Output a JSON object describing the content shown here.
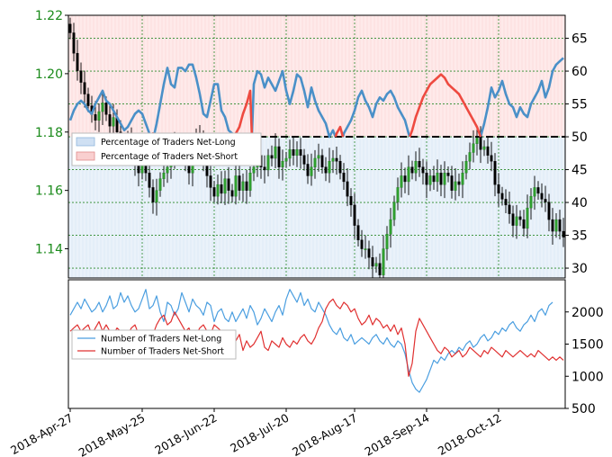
{
  "chart_data": [
    {
      "type": "line",
      "panel": "sentiment-price",
      "price_axis": {
        "ticks": [
          1.14,
          1.16,
          1.18,
          1.2,
          1.22
        ],
        "tick_labels": [
          "1.14",
          "1.16",
          "1.18",
          "1.20",
          "1.22"
        ],
        "range": [
          1.13,
          1.22
        ],
        "color": "#1a8a1a"
      },
      "pct_axis": {
        "ticks": [
          30,
          35,
          40,
          45,
          50,
          55,
          60,
          65
        ],
        "tick_labels": [
          "30",
          "35",
          "40",
          "45",
          "50",
          "55",
          "60",
          "65"
        ],
        "range": [
          28.5,
          68.5
        ]
      },
      "threshold": 50,
      "legend": [
        "Percentage of Traders Net-Long",
        "Percentage of Traders Net-Short"
      ],
      "legend_position": "upper-left",
      "grid": true,
      "price_closes": [
        1.214,
        1.207,
        1.201,
        1.197,
        1.193,
        1.189,
        1.186,
        1.184,
        1.187,
        1.19,
        1.186,
        1.182,
        1.185,
        1.18,
        1.176,
        1.172,
        1.177,
        1.174,
        1.169,
        1.166,
        1.17,
        1.166,
        1.161,
        1.156,
        1.16,
        1.164,
        1.166,
        1.168,
        1.172,
        1.176,
        1.173,
        1.175,
        1.17,
        1.166,
        1.172,
        1.179,
        1.176,
        1.17,
        1.165,
        1.161,
        1.158,
        1.162,
        1.159,
        1.164,
        1.16,
        1.158,
        1.165,
        1.16,
        1.163,
        1.16,
        1.166,
        1.168,
        1.172,
        1.168,
        1.167,
        1.172,
        1.171,
        1.175,
        1.168,
        1.17,
        1.171,
        1.174,
        1.172,
        1.174,
        1.172,
        1.169,
        1.165,
        1.168,
        1.171,
        1.172,
        1.168,
        1.166,
        1.17,
        1.171,
        1.17,
        1.166,
        1.163,
        1.158,
        1.155,
        1.148,
        1.143,
        1.14,
        1.14,
        1.137,
        1.134,
        1.135,
        1.131,
        1.14,
        1.145,
        1.15,
        1.156,
        1.161,
        1.165,
        1.163,
        1.168,
        1.166,
        1.17,
        1.168,
        1.166,
        1.162,
        1.165,
        1.163,
        1.166,
        1.162,
        1.166,
        1.165,
        1.16,
        1.163,
        1.162,
        1.166,
        1.17,
        1.173,
        1.176,
        1.178,
        1.174,
        1.175,
        1.172,
        1.17,
        1.162,
        1.159,
        1.157,
        1.155,
        1.152,
        1.148,
        1.151,
        1.15,
        1.147,
        1.154,
        1.158,
        1.161,
        1.159,
        1.157,
        1.156,
        1.15,
        1.146,
        1.15,
        1.146,
        1.144,
        1.14
      ],
      "series": [
        {
          "name": "Percentage of Traders Net-Long",
          "values": [
            52.5,
            54.0,
            55.0,
            55.5,
            55.0,
            54.0,
            53.5,
            55.0,
            56.0,
            57.0,
            55.5,
            55.0,
            54.0,
            53.0,
            52.0,
            51.0,
            51.5,
            52.5,
            53.5,
            54.0,
            53.5,
            52.0,
            50.5,
            49.5,
            52.0,
            55.0,
            58.0,
            60.5,
            58.0,
            57.5,
            60.5,
            60.5,
            60.0,
            61.0,
            61.0,
            59.0,
            56.5,
            53.5,
            53.0,
            55.5,
            58.0,
            58.0,
            54.0,
            53.0,
            51.0,
            50.5,
            49.5,
            48.5,
            46.5,
            45.0,
            43.0,
            58.0,
            60.0,
            59.5,
            57.5,
            59.0,
            58.0,
            57.0,
            58.5,
            60.0,
            57.0,
            55.0,
            57.0,
            59.5,
            59.0,
            57.0,
            54.5,
            57.5,
            55.5,
            54.0,
            53.0,
            52.0,
            50.0,
            51.0,
            49.5,
            48.5,
            50.5,
            51.5,
            52.5,
            54.0,
            56.0,
            57.0,
            55.5,
            54.5,
            53.0,
            55.0,
            56.0,
            55.5,
            56.5,
            57.0,
            56.0,
            54.5,
            53.5,
            52.5,
            50.5,
            49.0,
            47.0,
            45.5,
            44.0,
            43.0,
            42.0,
            41.5,
            41.0,
            40.5,
            41.0,
            42.0,
            42.5,
            43.0,
            43.5,
            44.5,
            45.5,
            46.5,
            47.5,
            48.5,
            50.0,
            52.0,
            54.5,
            57.5,
            56.0,
            57.0,
            58.5,
            56.5,
            55.0,
            54.5,
            53.0,
            54.5,
            53.5,
            53.0,
            55.0,
            56.0,
            57.0,
            58.5,
            56.0,
            57.5,
            60.0,
            61.0,
            61.5,
            62.0
          ]
        },
        {
          "name": "Percentage of Traders Net-Short",
          "values": [
            47.5,
            46.0,
            45.0,
            44.5,
            45.0,
            46.0,
            46.5,
            45.0,
            44.0,
            43.0,
            44.5,
            45.0,
            46.0,
            47.0,
            48.0,
            49.0,
            48.5,
            47.5,
            46.5,
            46.0,
            46.5,
            48.0,
            49.5,
            50.5,
            48.0,
            45.0,
            42.0,
            39.5,
            42.0,
            42.5,
            39.5,
            39.5,
            40.0,
            39.0,
            39.0,
            41.0,
            43.5,
            46.5,
            47.0,
            44.5,
            42.0,
            42.0,
            46.0,
            47.0,
            49.0,
            49.5,
            50.5,
            51.5,
            53.5,
            55.0,
            57.0,
            42.0,
            40.0,
            40.5,
            42.5,
            41.0,
            42.0,
            43.0,
            41.5,
            40.0,
            43.0,
            45.0,
            43.0,
            40.5,
            41.0,
            43.0,
            45.5,
            42.5,
            44.5,
            46.0,
            47.0,
            48.0,
            50.0,
            49.0,
            50.5,
            51.5,
            49.5,
            48.5,
            47.5,
            46.0,
            44.0,
            43.0,
            44.5,
            45.5,
            47.0,
            45.0,
            44.0,
            44.5,
            43.5,
            43.0,
            44.0,
            45.5,
            46.5,
            47.5,
            49.5,
            51.0,
            53.0,
            54.5,
            56.0,
            57.0,
            58.0,
            58.5,
            59.0,
            59.5,
            59.0,
            58.0,
            57.5,
            57.0,
            56.5,
            55.5,
            54.5,
            53.5,
            52.5,
            51.5,
            50.0,
            48.0,
            45.5,
            42.5,
            44.0,
            43.0,
            41.5,
            43.5,
            45.0,
            45.5,
            47.0,
            45.5,
            46.5,
            47.0,
            45.0,
            44.0,
            43.0,
            41.5,
            44.0,
            42.5,
            40.0,
            39.0,
            38.5,
            38.0
          ]
        }
      ]
    },
    {
      "type": "line",
      "panel": "trader-counts",
      "y_axis": {
        "ticks": [
          500,
          1000,
          1500,
          2000
        ],
        "tick_labels": [
          "500",
          "1000",
          "1500",
          "2000"
        ],
        "range": [
          500,
          2500
        ]
      },
      "legend": [
        "Number of Traders Net-Long",
        "Number of Traders Net-Short"
      ],
      "legend_position": "left",
      "x_tick_labels": [
        "2018-Apr-27",
        "2018-May-25",
        "2018-Jun-22",
        "2018-Jul-20",
        "2018-Aug-17",
        "2018-Sep-14",
        "2018-Oct-12"
      ],
      "series": [
        {
          "name": "Number of Traders Net-Long",
          "values": [
            1950,
            2050,
            2150,
            2050,
            2200,
            2100,
            2000,
            2050,
            2150,
            2000,
            2100,
            2250,
            2050,
            2100,
            2300,
            2150,
            2250,
            2100,
            2000,
            2050,
            2200,
            2350,
            2050,
            2100,
            2250,
            2000,
            1850,
            2150,
            2100,
            1950,
            2050,
            2300,
            2150,
            2000,
            2200,
            2100,
            2050,
            1950,
            2150,
            2100,
            1850,
            2000,
            2050,
            1900,
            1850,
            2000,
            1850,
            1950,
            2050,
            1900,
            2100,
            2000,
            1800,
            1900,
            2050,
            1950,
            1850,
            2000,
            2100,
            1950,
            2200,
            2350,
            2250,
            2150,
            2300,
            2100,
            2200,
            2050,
            2000,
            2150,
            2050,
            1950,
            1800,
            1700,
            1650,
            1750,
            1600,
            1550,
            1650,
            1500,
            1550,
            1600,
            1550,
            1500,
            1600,
            1650,
            1550,
            1500,
            1600,
            1500,
            1450,
            1550,
            1500,
            1350,
            1100,
            900,
            800,
            750,
            850,
            950,
            1100,
            1250,
            1200,
            1300,
            1250,
            1350,
            1400,
            1350,
            1450,
            1400,
            1500,
            1550,
            1450,
            1500,
            1600,
            1650,
            1550,
            1600,
            1700,
            1650,
            1750,
            1700,
            1800,
            1850,
            1750,
            1700,
            1800,
            1850,
            1950,
            1850,
            2000,
            2050,
            1950,
            2100,
            2150
          ]
        },
        {
          "name": "Number of Traders Net-Short",
          "values": [
            1700,
            1750,
            1800,
            1700,
            1750,
            1800,
            1650,
            1750,
            1850,
            1700,
            1800,
            1700,
            1650,
            1750,
            1700,
            1600,
            1650,
            1750,
            1800,
            1650,
            1700,
            1600,
            1550,
            1650,
            1800,
            1900,
            1950,
            1800,
            1850,
            2000,
            1900,
            1800,
            1700,
            1750,
            1600,
            1650,
            1750,
            1800,
            1700,
            1650,
            1800,
            1750,
            1700,
            1650,
            1600,
            1500,
            1550,
            1650,
            1400,
            1550,
            1450,
            1500,
            1600,
            1700,
            1450,
            1400,
            1550,
            1500,
            1450,
            1600,
            1500,
            1450,
            1550,
            1500,
            1600,
            1650,
            1550,
            1500,
            1600,
            1750,
            1850,
            2050,
            2150,
            2200,
            2100,
            2050,
            2150,
            2100,
            2000,
            2050,
            1900,
            1800,
            1850,
            1950,
            1800,
            1900,
            1850,
            1750,
            1800,
            1700,
            1800,
            1650,
            1750,
            1500,
            1000,
            1200,
            1700,
            1900,
            1800,
            1700,
            1600,
            1500,
            1400,
            1350,
            1450,
            1400,
            1300,
            1350,
            1400,
            1300,
            1350,
            1450,
            1400,
            1350,
            1300,
            1400,
            1350,
            1450,
            1400,
            1350,
            1300,
            1400,
            1350,
            1300,
            1350,
            1400,
            1350,
            1300,
            1350,
            1300,
            1400,
            1350,
            1300,
            1250,
            1300,
            1250,
            1300,
            1250
          ]
        }
      ]
    }
  ]
}
